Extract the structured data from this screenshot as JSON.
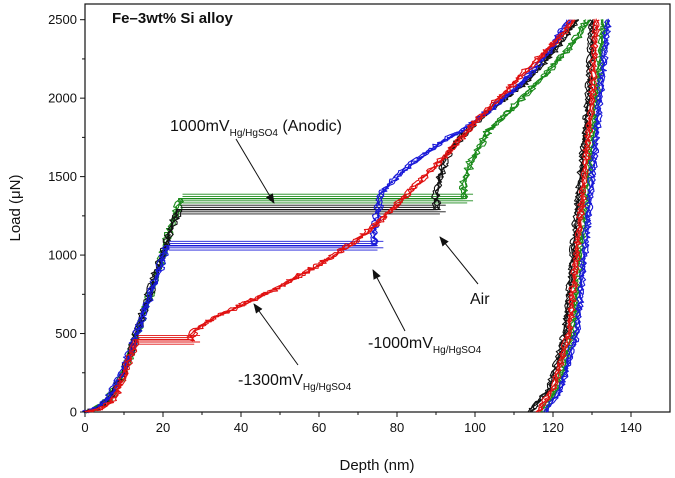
{
  "chart_data": {
    "type": "line",
    "title": "Fe–3wt% Si alloy",
    "xlabel": "Depth (nm)",
    "ylabel": "Load (μN)",
    "xlim": [
      0,
      150
    ],
    "ylim": [
      0,
      2600
    ],
    "xticks": [
      0,
      20,
      40,
      60,
      80,
      100,
      120,
      140
    ],
    "yticks": [
      0,
      500,
      1000,
      1500,
      2000,
      2500
    ],
    "series": [
      {
        "name": "1000mV Hg/HgSO4 (Anodic)",
        "color": "#1a8a1a",
        "loading": [
          [
            0,
            0
          ],
          [
            3,
            25
          ],
          [
            6,
            80
          ],
          [
            10,
            250
          ],
          [
            14,
            550
          ],
          [
            18,
            850
          ],
          [
            21,
            1100
          ],
          [
            23,
            1250
          ],
          [
            24.5,
            1360
          ],
          [
            97,
            1360
          ],
          [
            97,
            1450
          ],
          [
            99,
            1600
          ],
          [
            103,
            1780
          ],
          [
            110,
            1950
          ],
          [
            118,
            2150
          ],
          [
            125,
            2350
          ],
          [
            129,
            2500
          ]
        ],
        "unloading": [
          [
            133,
            2500
          ],
          [
            131,
            2000
          ],
          [
            129,
            1500
          ],
          [
            127,
            1000
          ],
          [
            125,
            500
          ],
          [
            121,
            150
          ],
          [
            117,
            0
          ]
        ],
        "pop_in_widths": [
          0,
          2
        ]
      },
      {
        "name": "Air",
        "color": "#111111",
        "loading": [
          [
            0,
            0
          ],
          [
            3,
            25
          ],
          [
            6,
            80
          ],
          [
            10,
            250
          ],
          [
            13,
            500
          ],
          [
            16,
            720
          ],
          [
            19,
            950
          ],
          [
            21,
            1100
          ],
          [
            23,
            1230
          ],
          [
            24,
            1290
          ],
          [
            90,
            1290
          ],
          [
            90,
            1420
          ],
          [
            93,
            1650
          ],
          [
            98,
            1800
          ],
          [
            105,
            1950
          ],
          [
            113,
            2100
          ],
          [
            120,
            2300
          ],
          [
            126,
            2500
          ]
        ],
        "unloading": [
          [
            130,
            2500
          ],
          [
            129,
            2000
          ],
          [
            127,
            1500
          ],
          [
            125,
            1000
          ],
          [
            123,
            500
          ],
          [
            119,
            150
          ],
          [
            114,
            0
          ]
        ],
        "pop_in_widths": [
          0,
          -2
        ]
      },
      {
        "name": "-1000mV Hg/HgSO4",
        "color": "#1818d8",
        "loading": [
          [
            0,
            0
          ],
          [
            3,
            25
          ],
          [
            6,
            90
          ],
          [
            10,
            270
          ],
          [
            14,
            560
          ],
          [
            18,
            840
          ],
          [
            20,
            980
          ],
          [
            21,
            1060
          ],
          [
            74,
            1060
          ],
          [
            74,
            1150
          ],
          [
            76,
            1400
          ],
          [
            82,
            1550
          ],
          [
            90,
            1700
          ],
          [
            97,
            1800
          ],
          [
            105,
            1950
          ],
          [
            112,
            2100
          ],
          [
            119,
            2300
          ],
          [
            124,
            2500
          ]
        ],
        "unloading": [
          [
            134,
            2500
          ],
          [
            132,
            2000
          ],
          [
            130,
            1500
          ],
          [
            128,
            1000
          ],
          [
            126,
            500
          ],
          [
            122,
            150
          ],
          [
            118,
            0
          ]
        ],
        "pop_in_widths": [
          0,
          2
        ]
      },
      {
        "name": "-1300mV Hg/HgSO4",
        "color": "#e01010",
        "loading": [
          [
            0,
            0
          ],
          [
            4,
            20
          ],
          [
            7,
            70
          ],
          [
            10,
            230
          ],
          [
            12,
            380
          ],
          [
            13,
            460
          ],
          [
            27,
            460
          ],
          [
            28,
            520
          ],
          [
            33,
            600
          ],
          [
            40,
            680
          ],
          [
            50,
            800
          ],
          [
            60,
            940
          ],
          [
            70,
            1100
          ],
          [
            77,
            1250
          ],
          [
            85,
            1450
          ],
          [
            93,
            1650
          ],
          [
            100,
            1850
          ],
          [
            108,
            2050
          ],
          [
            116,
            2250
          ],
          [
            122,
            2400
          ],
          [
            125,
            2500
          ]
        ],
        "unloading": [
          [
            131,
            2500
          ],
          [
            130,
            2000
          ],
          [
            128,
            1500
          ],
          [
            126,
            1000
          ],
          [
            124,
            500
          ],
          [
            120,
            150
          ],
          [
            116,
            0
          ]
        ],
        "pop_in_widths": [
          0,
          2
        ]
      }
    ],
    "annotations": [
      {
        "main": "1000mV",
        "sub": "Hg/HgSO4",
        "suffix": " (Anodic)"
      },
      {
        "main": "Air",
        "sub": "",
        "suffix": ""
      },
      {
        "main": "-1000mV",
        "sub": "Hg/HgSO4",
        "suffix": ""
      },
      {
        "main": "-1300mV",
        "sub": "Hg/HgSO4",
        "suffix": ""
      }
    ]
  }
}
